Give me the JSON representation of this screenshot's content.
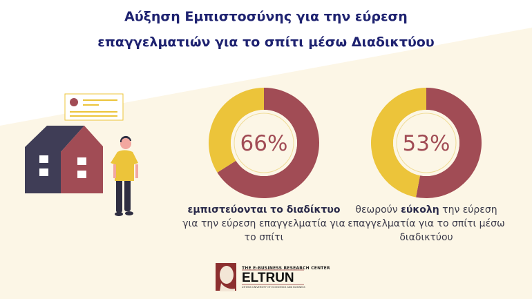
{
  "title": {
    "line1": "Αύξηση Εμπιστοσύνης για την εύρεση",
    "line2": "επαγγελματιών για το σπίτι μέσω Διαδικτύου"
  },
  "chart_data": [
    {
      "type": "pie",
      "variant": "donut",
      "values": [
        66,
        34
      ],
      "colors": [
        "#a14c55",
        "#ecc43a"
      ],
      "center_label": "66%",
      "caption_bold": "εμπιστεύονται το διαδίκτυο",
      "caption_rest": " για την εύρεση επαγγελματία για το σπίτι"
    },
    {
      "type": "pie",
      "variant": "donut",
      "values": [
        53,
        47
      ],
      "colors": [
        "#a14c55",
        "#ecc43a"
      ],
      "center_label": "53%",
      "caption_pre": "θεωρούν ",
      "caption_bold": "εύκολη",
      "caption_rest": " την εύρεση επαγγελματία για το σπίτι μέσω διαδικτύου"
    }
  ],
  "logo": {
    "top": "THE E-BUSINESS RESEARCH CENTER",
    "name": "ELTRUN",
    "sub": "ATHENS UNIVERSITY OF ECONOMICS AND BUSINESS"
  },
  "colors": {
    "title": "#1e2270",
    "cream": "#fcf6e6",
    "maroon": "#a14c55",
    "yellow": "#ecc43a",
    "navy": "#3f3d56"
  }
}
